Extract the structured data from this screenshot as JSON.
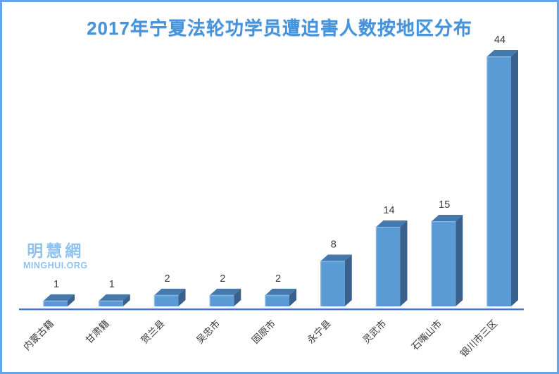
{
  "frame": {
    "background": "#ffffff",
    "border_color": "#64a5e8"
  },
  "watermark": {
    "line1": "明慧網",
    "line2": "MINGHUI.ORG",
    "color": "#8fc2ef"
  },
  "chart_data": {
    "type": "bar",
    "style": "3d-box",
    "title": "2017年宁夏法轮功学员遭迫害人数按地区分布",
    "categories": [
      "内蒙古籍",
      "甘肃籍",
      "贺兰县",
      "吴忠市",
      "固原市",
      "永宁县",
      "灵武市",
      "石嘴山市",
      "银川市三区"
    ],
    "values": [
      1,
      1,
      2,
      2,
      2,
      8,
      14,
      15,
      44
    ],
    "xlabel": "",
    "ylabel": "",
    "ylim": [
      0,
      44
    ],
    "grid": false,
    "legend": "none",
    "data_labels": true,
    "x_tick_rotation": 45,
    "colors": {
      "title": "#4793db",
      "bar_front": "#5b9bd5",
      "bar_top": "#4379ad",
      "bar_side": "#39618b",
      "bar_edge_highlight": "#84b5e3",
      "axis_line": "#4472c4",
      "axis_shadow": "#b3cbe9",
      "label": "#3a3a3a"
    }
  }
}
